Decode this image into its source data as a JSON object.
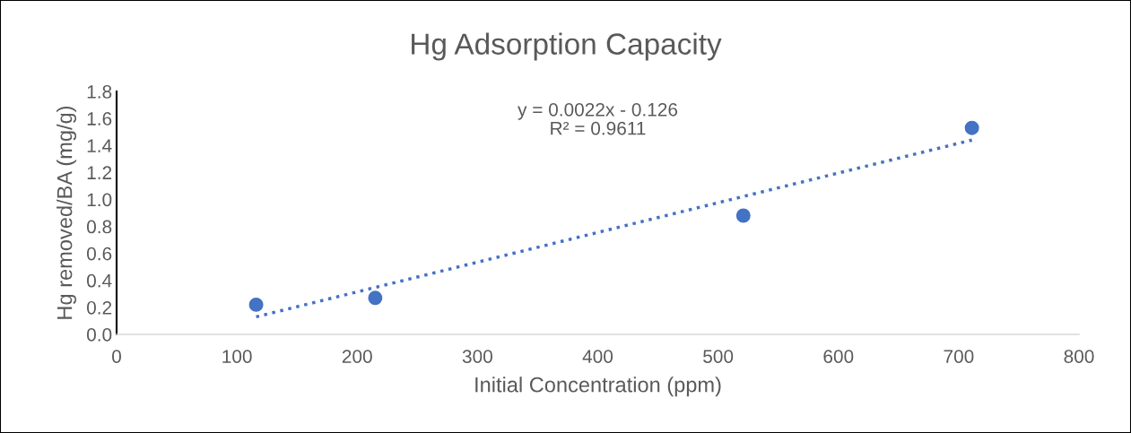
{
  "chart_data": {
    "type": "scatter",
    "title": "Hg Adsorption Capacity",
    "xlabel": "Initial Concentration (ppm)",
    "ylabel": "Hg removed/BA (mg/g)",
    "xlim": [
      0,
      800
    ],
    "xticks": [
      0,
      100,
      200,
      300,
      400,
      500,
      600,
      700,
      800
    ],
    "ylim": [
      0,
      1.8
    ],
    "yticks": [
      {
        "value": 0,
        "label": "0.0"
      },
      0.2,
      0.4,
      0.6,
      0.8,
      {
        "value": 1,
        "label": "1.0"
      },
      1.2,
      1.4,
      1.6,
      1.8
    ],
    "grid": false,
    "legend": false,
    "series": [
      {
        "color": "#4472c4",
        "marker": "circle",
        "x": [
          116,
          215,
          521,
          711
        ],
        "values": [
          0.22,
          0.27,
          0.88,
          1.53
        ]
      },
      {
        "type": "line",
        "color": "#4472c4",
        "line_style": "dotted",
        "x": [
          116,
          711
        ],
        "values": [
          0.13,
          1.44
        ]
      }
    ],
    "annotations": [
      "y = 0.0022x - 0.126\nR² = 0.9611"
    ]
  }
}
